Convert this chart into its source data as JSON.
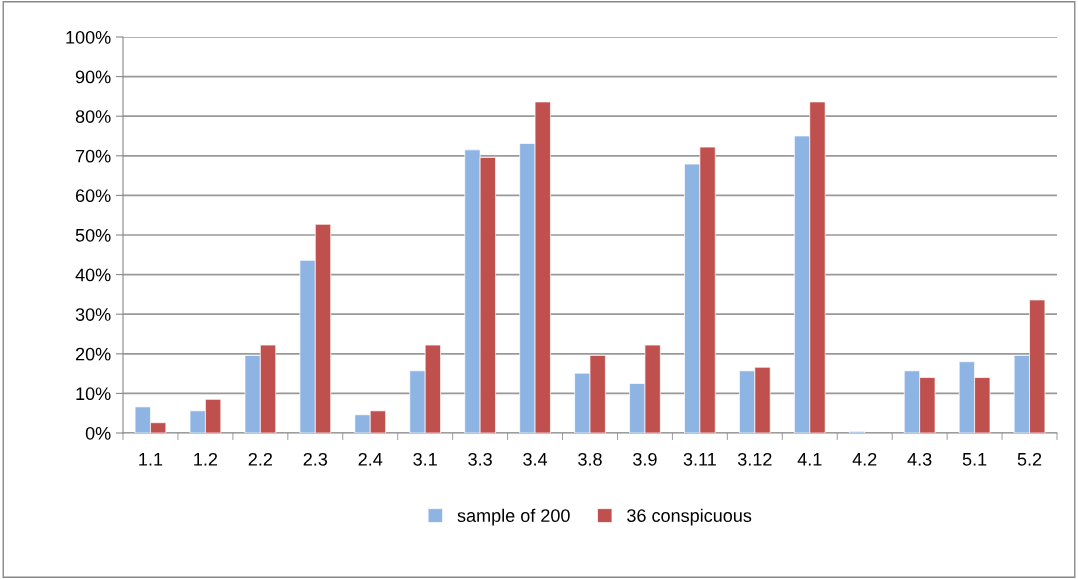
{
  "chart_data": {
    "type": "bar",
    "categories": [
      "1.1",
      "1.2",
      "2.2",
      "2.3",
      "2.4",
      "3.1",
      "3.3",
      "3.4",
      "3.8",
      "3.9",
      "3.11",
      "3.12",
      "4.1",
      "4.2",
      "4.3",
      "5.1",
      "5.2"
    ],
    "series": [
      {
        "name": "sample of 200",
        "color": "#8eb4e3",
        "values": [
          6.6,
          5.6,
          19.6,
          43.6,
          4.6,
          15.7,
          71.5,
          73.1,
          15.1,
          12.5,
          67.9,
          15.7,
          75.0,
          0.4,
          15.7,
          18.0,
          19.6
        ]
      },
      {
        "name": "36 conspicuous",
        "color": "#c0504d",
        "values": [
          2.6,
          8.5,
          22.2,
          52.7,
          5.6,
          22.2,
          69.6,
          83.6,
          19.6,
          22.2,
          72.2,
          16.6,
          83.6,
          null,
          14.0,
          14.0,
          33.6
        ]
      }
    ],
    "ylim": [
      0,
      100
    ],
    "yticks": [
      {
        "value": 0,
        "label": "0%"
      },
      {
        "value": 10,
        "label": "10%"
      },
      {
        "value": 20,
        "label": "20%"
      },
      {
        "value": 30,
        "label": "30%"
      },
      {
        "value": 40,
        "label": "40%"
      },
      {
        "value": 50,
        "label": "50%"
      },
      {
        "value": 60,
        "label": "60%"
      },
      {
        "value": 70,
        "label": "70%"
      },
      {
        "value": 80,
        "label": "80%"
      },
      {
        "value": 90,
        "label": "90%"
      },
      {
        "value": 100,
        "label": "100%"
      }
    ],
    "grid": "y",
    "legend": "bottom"
  }
}
